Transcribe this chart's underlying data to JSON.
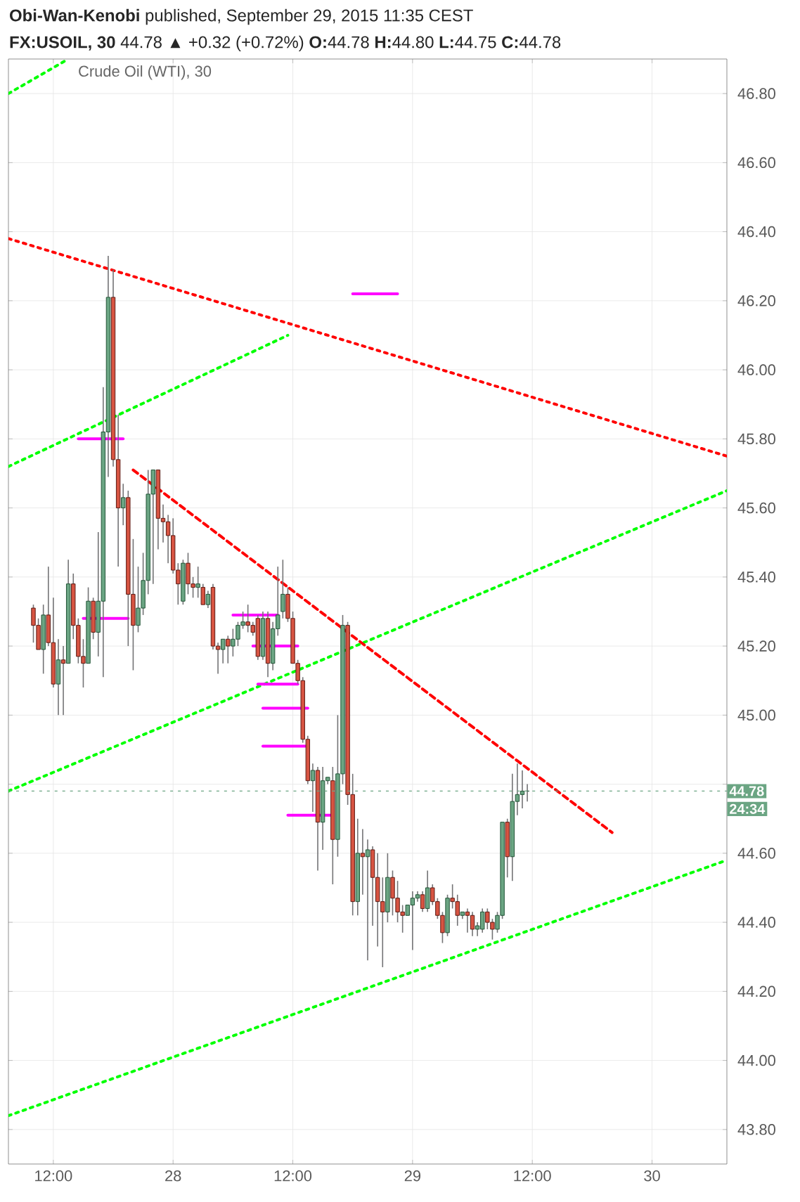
{
  "chart_data": {
    "type": "candlestick",
    "title": "Crude Oil (WTI), 30",
    "annotations": [
      "**Obi-Wan-Kenobi** published, September 29, 2015 11:35 CEST",
      "**FX:USOIL, 30** 44.78 ▲ +0.32 (+0.72%) **O:**44.78 **H:**44.80 **L:**44.75 **C:**44.78",
      "24:34"
    ],
    "x": [
      "2015-09-27T10:00",
      "2015-09-27T10:30",
      "2015-09-27T11:00",
      "2015-09-27T11:30",
      "2015-09-27T12:00",
      "2015-09-27T12:30",
      "2015-09-27T13:00",
      "2015-09-27T13:30",
      "2015-09-27T14:00",
      "2015-09-27T14:30",
      "2015-09-27T15:00",
      "2015-09-27T15:30",
      "2015-09-27T16:00",
      "2015-09-27T16:30",
      "2015-09-27T17:00",
      "2015-09-27T17:30",
      "2015-09-27T18:00",
      "2015-09-27T18:30",
      "2015-09-27T19:00",
      "2015-09-27T19:30",
      "2015-09-27T20:00",
      "2015-09-27T20:30",
      "2015-09-27T21:00",
      "2015-09-27T21:30",
      "2015-09-27T22:00",
      "2015-09-27T22:30",
      "2015-09-27T23:00",
      "2015-09-27T23:30",
      "2015-09-28T00:00",
      "2015-09-28T00:30",
      "2015-09-28T01:00",
      "2015-09-28T01:30",
      "2015-09-28T02:00",
      "2015-09-28T02:30",
      "2015-09-28T03:00",
      "2015-09-28T03:30",
      "2015-09-28T04:00",
      "2015-09-28T04:30",
      "2015-09-28T05:00",
      "2015-09-28T05:30",
      "2015-09-28T06:00",
      "2015-09-28T06:30",
      "2015-09-28T07:00",
      "2015-09-28T07:30",
      "2015-09-28T08:00",
      "2015-09-28T08:30",
      "2015-09-28T09:00",
      "2015-09-28T09:30",
      "2015-09-28T10:00",
      "2015-09-28T10:30",
      "2015-09-28T11:00",
      "2015-09-28T11:30",
      "2015-09-28T12:00",
      "2015-09-28T12:30",
      "2015-09-28T13:00",
      "2015-09-28T13:30",
      "2015-09-28T14:00",
      "2015-09-28T14:30",
      "2015-09-28T15:00",
      "2015-09-28T15:30",
      "2015-09-28T16:00",
      "2015-09-28T16:30",
      "2015-09-28T17:00",
      "2015-09-28T17:30",
      "2015-09-28T18:00",
      "2015-09-28T18:30",
      "2015-09-28T19:00",
      "2015-09-28T19:30",
      "2015-09-28T20:00",
      "2015-09-28T20:30",
      "2015-09-28T21:00",
      "2015-09-28T21:30",
      "2015-09-28T22:00",
      "2015-09-28T22:30",
      "2015-09-28T23:00",
      "2015-09-28T23:30",
      "2015-09-29T00:00",
      "2015-09-29T00:30",
      "2015-09-29T01:00",
      "2015-09-29T01:30",
      "2015-09-29T02:00",
      "2015-09-29T02:30",
      "2015-09-29T03:00",
      "2015-09-29T03:30",
      "2015-09-29T04:00",
      "2015-09-29T04:30",
      "2015-09-29T05:00",
      "2015-09-29T05:30",
      "2015-09-29T06:00",
      "2015-09-29T06:30",
      "2015-09-29T07:00",
      "2015-09-29T07:30",
      "2015-09-29T08:00",
      "2015-09-29T08:30",
      "2015-09-29T09:00",
      "2015-09-29T09:30",
      "2015-09-29T10:00",
      "2015-09-29T10:30",
      "2015-09-29T11:00",
      "2015-09-29T11:30"
    ],
    "ohlc": [
      [
        45.31,
        45.32,
        45.21,
        45.26
      ],
      [
        45.26,
        45.28,
        45.19,
        45.19
      ],
      [
        45.19,
        45.32,
        45.12,
        45.29
      ],
      [
        45.29,
        45.43,
        45.2,
        45.21
      ],
      [
        45.21,
        45.34,
        45.08,
        45.09
      ],
      [
        45.09,
        45.22,
        45.0,
        45.16
      ],
      [
        45.16,
        45.2,
        45.0,
        45.15
      ],
      [
        45.15,
        45.45,
        45.15,
        45.38
      ],
      [
        45.38,
        45.41,
        45.22,
        45.26
      ],
      [
        45.26,
        45.28,
        45.15,
        45.17
      ],
      [
        45.17,
        45.22,
        45.08,
        45.15
      ],
      [
        45.15,
        45.37,
        45.15,
        45.33
      ],
      [
        45.33,
        45.34,
        45.22,
        45.24
      ],
      [
        45.24,
        45.53,
        45.17,
        45.33
      ],
      [
        45.33,
        45.95,
        45.11,
        45.82
      ],
      [
        45.82,
        46.33,
        45.69,
        46.21
      ],
      [
        46.21,
        46.29,
        45.72,
        45.74
      ],
      [
        45.74,
        45.87,
        45.43,
        45.6
      ],
      [
        45.6,
        45.67,
        45.55,
        45.63
      ],
      [
        45.63,
        45.65,
        45.2,
        45.35
      ],
      [
        45.35,
        45.51,
        45.13,
        45.26
      ],
      [
        45.26,
        45.43,
        45.24,
        45.31
      ],
      [
        45.31,
        45.47,
        45.29,
        45.39
      ],
      [
        45.39,
        45.71,
        45.35,
        45.64
      ],
      [
        45.64,
        45.71,
        45.38,
        45.71
      ],
      [
        45.71,
        45.71,
        45.48,
        45.57
      ],
      [
        45.57,
        45.61,
        45.5,
        45.56
      ],
      [
        45.56,
        45.58,
        45.44,
        45.52
      ],
      [
        45.52,
        45.57,
        45.41,
        45.42
      ],
      [
        45.42,
        45.44,
        45.32,
        45.38
      ],
      [
        45.33,
        45.45,
        45.32,
        45.44
      ],
      [
        45.44,
        45.47,
        45.35,
        45.38
      ],
      [
        45.38,
        45.4,
        45.34,
        45.37
      ],
      [
        45.37,
        45.43,
        45.34,
        45.38
      ],
      [
        45.37,
        45.38,
        45.32,
        45.32
      ],
      [
        45.32,
        45.36,
        45.31,
        45.35
      ],
      [
        45.37,
        45.38,
        45.19,
        45.2
      ],
      [
        45.2,
        45.21,
        45.12,
        45.19
      ],
      [
        45.19,
        45.22,
        45.15,
        45.22
      ],
      [
        45.22,
        45.23,
        45.15,
        45.2
      ],
      [
        45.2,
        45.25,
        45.17,
        45.22
      ],
      [
        45.22,
        45.27,
        45.2,
        45.26
      ],
      [
        45.26,
        45.3,
        45.25,
        45.27
      ],
      [
        45.27,
        45.32,
        45.24,
        45.26
      ],
      [
        45.26,
        45.27,
        45.23,
        45.24
      ],
      [
        45.28,
        45.29,
        45.16,
        45.17
      ],
      [
        45.17,
        45.3,
        45.16,
        45.28
      ],
      [
        45.28,
        45.3,
        45.11,
        45.15
      ],
      [
        45.15,
        45.27,
        45.13,
        45.25
      ],
      [
        45.25,
        45.43,
        45.23,
        45.29
      ],
      [
        45.3,
        45.45,
        45.28,
        45.35
      ],
      [
        45.35,
        45.37,
        45.27,
        45.28
      ],
      [
        45.28,
        45.3,
        45.15,
        45.15
      ],
      [
        45.15,
        45.16,
        45.09,
        45.1
      ],
      [
        45.1,
        45.11,
        44.92,
        44.93
      ],
      [
        44.93,
        44.94,
        44.8,
        44.81
      ],
      [
        44.81,
        44.86,
        44.72,
        44.84
      ],
      [
        44.84,
        44.85,
        44.55,
        44.69
      ],
      [
        44.69,
        44.85,
        44.61,
        44.81
      ],
      [
        44.81,
        44.82,
        44.8,
        44.82
      ],
      [
        44.81,
        44.85,
        44.51,
        44.64
      ],
      [
        44.64,
        45.0,
        44.59,
        44.83
      ],
      [
        44.83,
        45.29,
        44.8,
        45.26
      ],
      [
        45.26,
        45.27,
        44.74,
        44.77
      ],
      [
        44.77,
        44.83,
        44.42,
        44.46
      ],
      [
        44.46,
        44.7,
        44.42,
        44.6
      ],
      [
        44.6,
        44.67,
        44.48,
        44.59
      ],
      [
        44.59,
        44.64,
        44.29,
        44.61
      ],
      [
        44.61,
        44.62,
        44.39,
        44.53
      ],
      [
        44.53,
        44.6,
        44.33,
        44.46
      ],
      [
        44.46,
        44.53,
        44.27,
        44.43
      ],
      [
        44.43,
        44.6,
        44.4,
        44.53
      ],
      [
        44.53,
        44.55,
        44.42,
        44.47
      ],
      [
        44.47,
        44.52,
        44.4,
        44.43
      ],
      [
        44.43,
        44.45,
        44.37,
        44.42
      ],
      [
        44.42,
        44.45,
        44.42,
        44.45
      ],
      [
        44.45,
        44.49,
        44.32,
        44.47
      ],
      [
        44.47,
        44.49,
        44.46,
        44.48
      ],
      [
        44.48,
        44.49,
        44.43,
        44.44
      ],
      [
        44.44,
        44.55,
        44.43,
        44.5
      ],
      [
        44.5,
        44.51,
        44.45,
        44.46
      ],
      [
        44.46,
        44.47,
        44.41,
        44.42
      ],
      [
        44.42,
        44.43,
        44.34,
        44.37
      ],
      [
        44.37,
        44.48,
        44.36,
        44.47
      ],
      [
        44.47,
        44.51,
        44.44,
        44.46
      ],
      [
        44.46,
        44.48,
        44.39,
        44.42
      ],
      [
        44.42,
        44.43,
        44.41,
        44.43
      ],
      [
        44.43,
        44.44,
        44.37,
        44.42
      ],
      [
        44.42,
        44.43,
        44.36,
        44.38
      ],
      [
        44.38,
        44.4,
        44.36,
        44.39
      ],
      [
        44.38,
        44.44,
        44.37,
        44.43
      ],
      [
        44.43,
        44.44,
        44.38,
        44.4
      ],
      [
        44.4,
        44.41,
        44.35,
        44.38
      ],
      [
        44.38,
        44.43,
        44.37,
        44.42
      ],
      [
        44.42,
        44.69,
        44.41,
        44.69
      ],
      [
        44.69,
        44.7,
        44.53,
        44.59
      ],
      [
        44.59,
        44.83,
        44.52,
        44.75
      ],
      [
        44.75,
        44.86,
        44.71,
        44.77
      ],
      [
        44.77,
        44.84,
        44.73,
        44.78
      ],
      [
        44.78,
        44.8,
        44.75,
        44.78
      ]
    ],
    "series": [
      {
        "type": "line",
        "color": "#ff0000",
        "line_style": "dotted",
        "x": [
          "2015-09-27T07:30",
          "2015-09-30T07:30"
        ],
        "values": [
          46.38,
          45.75
        ]
      },
      {
        "type": "line",
        "color": "#00ff00",
        "line_style": "dotted",
        "x": [
          "2015-09-27T07:30",
          "2015-09-27T13:30"
        ],
        "values": [
          46.8,
          46.9
        ]
      },
      {
        "type": "line",
        "color": "#00ff00",
        "line_style": "dotted",
        "x": [
          "2015-09-27T07:30",
          "2015-09-28T11:30"
        ],
        "values": [
          45.72,
          46.1
        ]
      },
      {
        "type": "line",
        "color": "#00ff00",
        "line_style": "dotted",
        "x": [
          "2015-09-27T07:30",
          "2015-09-30T07:30"
        ],
        "values": [
          44.78,
          45.65
        ]
      },
      {
        "type": "line",
        "color": "#00ff00",
        "line_style": "dotted",
        "x": [
          "2015-09-27T07:30",
          "2015-09-30T07:30"
        ],
        "values": [
          43.84,
          44.58
        ]
      },
      {
        "type": "line",
        "color": "#ff0000",
        "line_style": "dashed",
        "x": [
          "2015-09-27T20:00",
          "2015-09-29T20:00"
        ],
        "values": [
          45.71,
          44.66
        ]
      },
      {
        "type": "line",
        "color": "#ff00ff",
        "line_style": "solid",
        "x": [
          "2015-09-27T14:30",
          "2015-09-27T19:00"
        ],
        "values": [
          45.8,
          45.8
        ]
      },
      {
        "type": "line",
        "color": "#ff00ff",
        "line_style": "solid",
        "x": [
          "2015-09-27T15:00",
          "2015-09-27T19:30"
        ],
        "values": [
          45.28,
          45.28
        ]
      },
      {
        "type": "line",
        "color": "#ff00ff",
        "line_style": "solid",
        "x": [
          "2015-09-28T18:00",
          "2015-09-28T22:30"
        ],
        "values": [
          46.22,
          46.22
        ]
      },
      {
        "type": "line",
        "color": "#ff00ff",
        "line_style": "solid",
        "x": [
          "2015-09-28T06:00",
          "2015-09-28T10:30"
        ],
        "values": [
          45.29,
          45.29
        ]
      },
      {
        "type": "line",
        "color": "#ff00ff",
        "line_style": "solid",
        "x": [
          "2015-09-28T08:00",
          "2015-09-28T12:30"
        ],
        "values": [
          45.2,
          45.2
        ]
      },
      {
        "type": "line",
        "color": "#ff00ff",
        "line_style": "solid",
        "x": [
          "2015-09-28T08:30",
          "2015-09-28T12:30"
        ],
        "values": [
          45.09,
          45.09
        ]
      },
      {
        "type": "line",
        "color": "#ff00ff",
        "line_style": "solid",
        "x": [
          "2015-09-28T09:00",
          "2015-09-28T13:30"
        ],
        "values": [
          45.02,
          45.02
        ]
      },
      {
        "type": "line",
        "color": "#ff00ff",
        "line_style": "solid",
        "x": [
          "2015-09-28T09:00",
          "2015-09-28T13:30"
        ],
        "values": [
          44.91,
          44.91
        ]
      },
      {
        "type": "line",
        "color": "#ff00ff",
        "line_style": "solid",
        "x": [
          "2015-09-28T11:30",
          "2015-09-28T16:00"
        ],
        "values": [
          44.71,
          44.71
        ]
      }
    ],
    "ref_lines": [
      {
        "axis": "y",
        "value": 44.78,
        "label": "44.78",
        "color": "#6ba583",
        "line_style": "dotted"
      }
    ],
    "xlim": [
      "2015-09-27T07:30",
      "2015-09-30T07:30"
    ],
    "ylim": [
      43.7,
      46.9
    ],
    "xticks": [
      {
        "value": "2015-09-27T12:00",
        "label": "12:00"
      },
      {
        "value": "2015-09-28T00:00",
        "label": "28"
      },
      {
        "value": "2015-09-28T12:00",
        "label": "12:00"
      },
      {
        "value": "2015-09-29T00:00",
        "label": "29"
      },
      {
        "value": "2015-09-29T12:00",
        "label": "12:00"
      },
      {
        "value": "2015-09-30T00:00",
        "label": "30"
      }
    ],
    "yticks": [
      {
        "value": 43.8,
        "label": "43.80"
      },
      {
        "value": 44.0,
        "label": "44.00"
      },
      {
        "value": 44.2,
        "label": "44.20"
      },
      {
        "value": 44.4,
        "label": "44.40"
      },
      {
        "value": 44.6,
        "label": "44.60"
      },
      {
        "value": 44.8,
        "label": null
      },
      {
        "value": 45.0,
        "label": "45.00"
      },
      {
        "value": 45.2,
        "label": "45.20"
      },
      {
        "value": 45.4,
        "label": "45.40"
      },
      {
        "value": 45.6,
        "label": "45.60"
      },
      {
        "value": 45.8,
        "label": "45.80"
      },
      {
        "value": 46.0,
        "label": "46.00"
      },
      {
        "value": 46.2,
        "label": "46.20"
      },
      {
        "value": 46.4,
        "label": "46.40"
      },
      {
        "value": 46.6,
        "label": "46.60"
      },
      {
        "value": 46.8,
        "label": "46.80"
      }
    ],
    "grid": true
  }
}
